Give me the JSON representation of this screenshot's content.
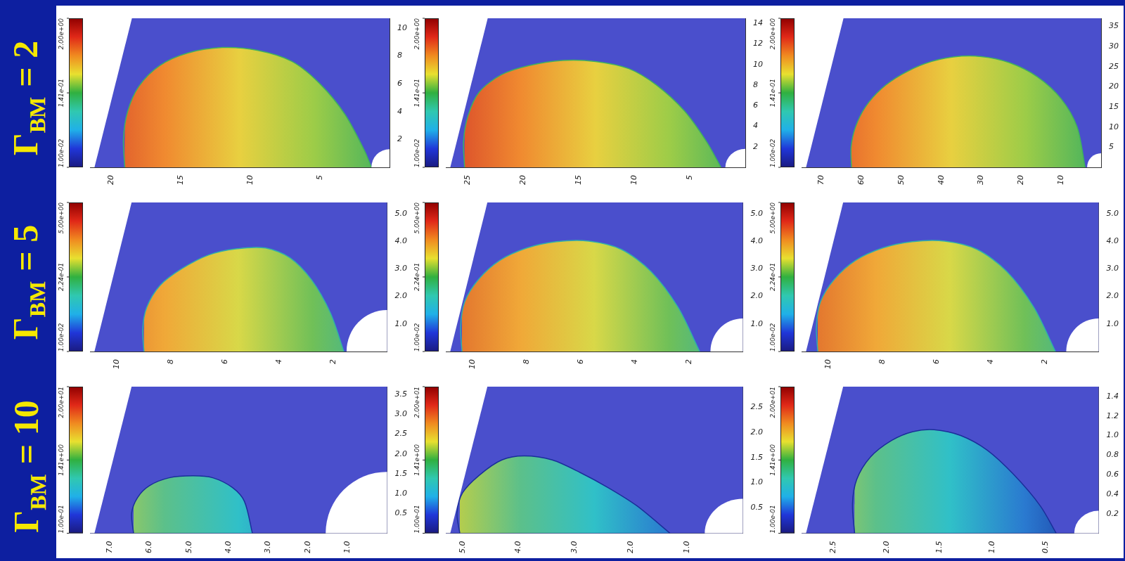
{
  "row_labels": [
    {
      "symbol": "Γ",
      "subscript": "BM",
      "text": "= 2"
    },
    {
      "symbol": "Γ",
      "subscript": "BM",
      "text": "= 5"
    },
    {
      "symbol": "Γ",
      "subscript": "BM",
      "text": "= 10"
    }
  ],
  "chart_data": [
    {
      "type": "area",
      "grid": false,
      "x": [
        19.0,
        19.1,
        18.8,
        18.0,
        16.5,
        14.5,
        12.0,
        9.5,
        7.0,
        5.0,
        3.2,
        1.8,
        1.3
      ],
      "values": [
        0,
        2.0,
        4.0,
        5.8,
        7.3,
        8.2,
        8.6,
        8.4,
        7.6,
        6.0,
        3.8,
        1.2,
        0
      ],
      "xlim": [
        0,
        21.5
      ],
      "xticks": [
        20,
        15,
        10,
        5
      ],
      "ylim": [
        0,
        10.7
      ],
      "yticks": [
        2,
        4,
        6,
        8,
        10
      ],
      "inner_radius": 1.3,
      "colorbar": {
        "log": true,
        "range": [
          0.01,
          2
        ],
        "ticks": [
          {
            "value": 0.01,
            "label": "1.00e-02"
          },
          {
            "value": 0.141,
            "label": "1.41e-01"
          },
          {
            "value": 2,
            "label": "2.00e+00"
          }
        ]
      }
    },
    {
      "type": "area",
      "grid": false,
      "x": [
        25.3,
        25.4,
        25.0,
        24.0,
        22.0,
        19.5,
        16.5,
        13.5,
        10.5,
        8.0,
        5.5,
        3.5,
        2.2
      ],
      "values": [
        0,
        2.5,
        5.0,
        7.3,
        9.0,
        9.9,
        10.4,
        10.3,
        9.6,
        8.0,
        5.5,
        2.5,
        0
      ],
      "xlim": [
        0,
        27
      ],
      "xticks": [
        25,
        20,
        15,
        10,
        5
      ],
      "ylim": [
        0,
        14.5
      ],
      "yticks": [
        2,
        4,
        6,
        8,
        10,
        12,
        14
      ],
      "inner_radius": 1.8,
      "colorbar": {
        "log": true,
        "range": [
          0.01,
          2
        ],
        "ticks": [
          {
            "value": 0.01,
            "label": "1.00e-02"
          },
          {
            "value": 0.141,
            "label": "1.41e-01"
          },
          {
            "value": 2,
            "label": "2.00e+00"
          }
        ]
      }
    },
    {
      "type": "area",
      "grid": false,
      "x": [
        62.5,
        62.6,
        61.5,
        59,
        55,
        50,
        44,
        37,
        30,
        23,
        16,
        10,
        6,
        4
      ],
      "values": [
        0,
        5,
        10,
        15,
        19.5,
        23,
        25.8,
        27.4,
        27.5,
        26,
        22.5,
        17,
        10,
        0
      ],
      "xlim": [
        0,
        75
      ],
      "xticks": [
        70,
        60,
        50,
        40,
        30,
        20,
        10
      ],
      "ylim": [
        0,
        37
      ],
      "yticks": [
        5,
        10,
        15,
        20,
        25,
        30,
        35
      ],
      "inner_radius": 3.5,
      "colorbar": {
        "log": true,
        "range": [
          0.01,
          2
        ],
        "ticks": [
          {
            "value": 0.01,
            "label": "1.00e-02"
          },
          {
            "value": 0.141,
            "label": "1.41e-01"
          },
          {
            "value": 2,
            "label": "2.00e+00"
          }
        ]
      }
    },
    {
      "type": "area",
      "grid": false,
      "x": [
        9.0,
        9.05,
        8.9,
        8.4,
        7.6,
        6.6,
        5.6,
        4.5,
        3.6,
        2.8,
        2.1,
        1.6
      ],
      "values": [
        0,
        0.8,
        1.6,
        2.4,
        3.0,
        3.5,
        3.72,
        3.75,
        3.4,
        2.6,
        1.4,
        0
      ],
      "xlim": [
        0,
        11
      ],
      "xticks": [
        10,
        8,
        6,
        4,
        2
      ],
      "ylim": [
        0,
        5.4
      ],
      "yticks": [
        {
          "value": 1,
          "label": "1.0"
        },
        {
          "value": 2,
          "label": "2.0"
        },
        {
          "value": 3,
          "label": "3.0"
        },
        {
          "value": 4,
          "label": "4.0"
        },
        {
          "value": 5,
          "label": "5.0"
        }
      ],
      "inner_radius": 1.5,
      "colorbar": {
        "log": true,
        "range": [
          0.01,
          5
        ],
        "ticks": [
          {
            "value": 0.01,
            "label": "1.00e-02"
          },
          {
            "value": 0.224,
            "label": "2.24e-01"
          },
          {
            "value": 5,
            "label": "5.00e+00"
          }
        ]
      }
    },
    {
      "type": "area",
      "grid": false,
      "x": [
        10.4,
        10.45,
        10.3,
        9.8,
        9.0,
        8.0,
        6.9,
        5.7,
        4.5,
        3.4,
        2.4,
        1.6
      ],
      "values": [
        0,
        0.9,
        1.8,
        2.6,
        3.3,
        3.75,
        3.98,
        4.0,
        3.7,
        2.9,
        1.6,
        0
      ],
      "xlim": [
        0,
        11
      ],
      "xticks": [
        10,
        8,
        6,
        4,
        2
      ],
      "ylim": [
        0,
        5.4
      ],
      "yticks": [
        {
          "value": 1,
          "label": "1.0"
        },
        {
          "value": 2,
          "label": "2.0"
        },
        {
          "value": 3,
          "label": "3.0"
        },
        {
          "value": 4,
          "label": "4.0"
        },
        {
          "value": 5,
          "label": "5.0"
        }
      ],
      "inner_radius": 1.2,
      "colorbar": {
        "log": true,
        "range": [
          0.01,
          5
        ],
        "ticks": [
          {
            "value": 0.01,
            "label": "1.00e-02"
          },
          {
            "value": 0.224,
            "label": "2.24e-01"
          },
          {
            "value": 5,
            "label": "5.00e+00"
          }
        ]
      }
    },
    {
      "type": "area",
      "grid": false,
      "x": [
        10.4,
        10.45,
        10.3,
        9.8,
        9.0,
        8.0,
        6.9,
        5.7,
        4.5,
        3.4,
        2.4,
        1.6
      ],
      "values": [
        0,
        0.9,
        1.8,
        2.6,
        3.3,
        3.75,
        3.98,
        4.0,
        3.7,
        2.9,
        1.6,
        0
      ],
      "xlim": [
        0,
        11
      ],
      "xticks": [
        10,
        8,
        6,
        4,
        2
      ],
      "ylim": [
        0,
        5.4
      ],
      "yticks": [
        {
          "value": 1,
          "label": "1.0"
        },
        {
          "value": 2,
          "label": "2.0"
        },
        {
          "value": 3,
          "label": "3.0"
        },
        {
          "value": 4,
          "label": "4.0"
        },
        {
          "value": 5,
          "label": "5.0"
        }
      ],
      "inner_radius": 1.2,
      "colorbar": {
        "log": true,
        "range": [
          0.01,
          5
        ],
        "ticks": [
          {
            "value": 0.01,
            "label": "1.00e-02"
          },
          {
            "value": 0.224,
            "label": "2.24e-01"
          },
          {
            "value": 5,
            "label": "5.00e+00"
          }
        ]
      }
    },
    {
      "type": "area",
      "grid": false,
      "x": [
        6.4,
        6.45,
        6.3,
        6.0,
        5.5,
        4.9,
        4.4,
        3.9,
        3.6,
        3.4
      ],
      "values": [
        0,
        0.5,
        0.9,
        1.2,
        1.4,
        1.45,
        1.4,
        1.15,
        0.8,
        0
      ],
      "xlim": [
        0,
        7.5
      ],
      "xticks": [
        {
          "value": 7,
          "label": "7.0"
        },
        {
          "value": 6,
          "label": "6.0"
        },
        {
          "value": 5,
          "label": "5.0"
        },
        {
          "value": 4,
          "label": "4.0"
        },
        {
          "value": 3,
          "label": "3.0"
        },
        {
          "value": 2,
          "label": "2.0"
        },
        {
          "value": 1,
          "label": "1.0"
        }
      ],
      "ylim": [
        0,
        3.7
      ],
      "yticks": [
        0.5,
        {
          "value": 1,
          "label": "1.0"
        },
        1.5,
        {
          "value": 2,
          "label": "2.0"
        },
        2.5,
        {
          "value": 3,
          "label": "3.0"
        },
        3.5
      ],
      "inner_radius": 1.55,
      "colorbar": {
        "log": true,
        "range": [
          0.1,
          20
        ],
        "ticks": [
          {
            "value": 0.1,
            "label": "1.00e-01"
          },
          {
            "value": 1.41,
            "label": "1.41e+00"
          },
          {
            "value": 20,
            "label": "2.00e+01"
          }
        ]
      }
    },
    {
      "type": "area",
      "grid": false,
      "x": [
        5.05,
        5.1,
        5.0,
        4.7,
        4.3,
        3.9,
        3.4,
        2.9,
        2.4,
        1.9,
        1.3
      ],
      "values": [
        0,
        0.4,
        0.8,
        1.15,
        1.45,
        1.53,
        1.45,
        1.2,
        0.9,
        0.55,
        0
      ],
      "xlim": [
        0,
        5.3
      ],
      "xticks": [
        {
          "value": 5,
          "label": "5.0"
        },
        {
          "value": 4,
          "label": "4.0"
        },
        {
          "value": 3,
          "label": "3.0"
        },
        {
          "value": 2,
          "label": "2.0"
        },
        {
          "value": 1,
          "label": "1.0"
        }
      ],
      "ylim": [
        0,
        2.9
      ],
      "yticks": [
        0.5,
        {
          "value": 1,
          "label": "1.0"
        },
        1.5,
        {
          "value": 2,
          "label": "2.0"
        },
        2.5
      ],
      "inner_radius": 0.68,
      "colorbar": {
        "log": true,
        "range": [
          0.1,
          20
        ],
        "ticks": [
          {
            "value": 0.1,
            "label": "1.00e-01"
          },
          {
            "value": 1.41,
            "label": "1.41e+00"
          },
          {
            "value": 20,
            "label": "2.00e+01"
          }
        ]
      }
    },
    {
      "type": "area",
      "grid": false,
      "x": [
        2.3,
        2.32,
        2.28,
        2.15,
        1.95,
        1.75,
        1.55,
        1.3,
        1.05,
        0.8,
        0.55,
        0.4
      ],
      "values": [
        0,
        0.3,
        0.55,
        0.78,
        0.95,
        1.04,
        1.06,
        1.0,
        0.85,
        0.6,
        0.28,
        0
      ],
      "xlim": [
        0,
        2.8
      ],
      "xticks": [
        2.5,
        {
          "value": 2,
          "label": "2.0"
        },
        1.5,
        {
          "value": 1,
          "label": "1.0"
        },
        0.5
      ],
      "ylim": [
        0,
        1.5
      ],
      "yticks": [
        0.2,
        0.4,
        0.6,
        0.8,
        {
          "value": 1,
          "label": "1.0"
        },
        1.2,
        1.4
      ],
      "inner_radius": 0.23,
      "colorbar": {
        "log": true,
        "range": [
          0.1,
          20
        ],
        "ticks": [
          {
            "value": 0.1,
            "label": "1.00e-01"
          },
          {
            "value": 1.41,
            "label": "1.41e+00"
          },
          {
            "value": 20,
            "label": "2.00e+01"
          }
        ]
      }
    }
  ]
}
